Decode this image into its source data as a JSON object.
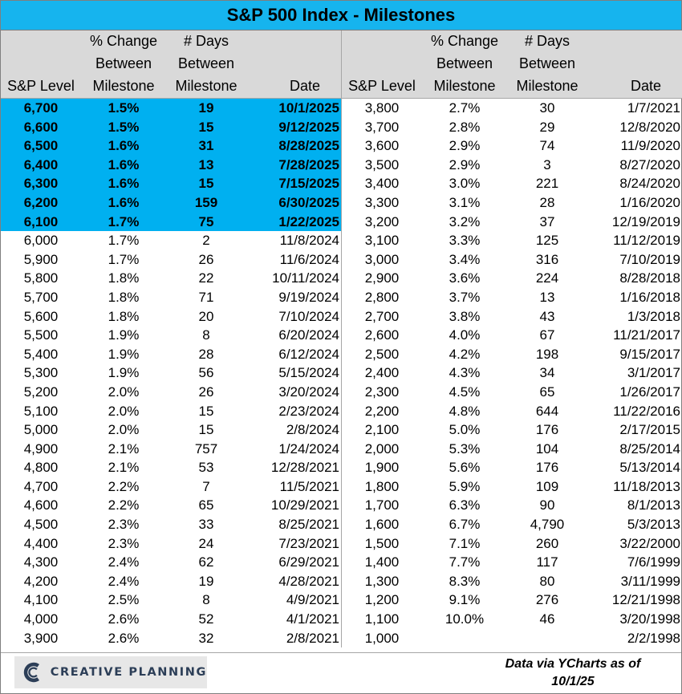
{
  "title": "S&P 500 Index  - Milestones",
  "headers": {
    "level": [
      "",
      "",
      "S&P Level"
    ],
    "pct": [
      "% Change",
      "Between",
      "Milestone"
    ],
    "days": [
      "# Days",
      "Between",
      "Milestone"
    ],
    "date": [
      "",
      "",
      "Date"
    ]
  },
  "left_rows": [
    {
      "level": "6,700",
      "pct": "1.5%",
      "days": "19",
      "date": "10/1/2025",
      "highlight": true
    },
    {
      "level": "6,600",
      "pct": "1.5%",
      "days": "15",
      "date": "9/12/2025",
      "highlight": true
    },
    {
      "level": "6,500",
      "pct": "1.6%",
      "days": "31",
      "date": "8/28/2025",
      "highlight": true
    },
    {
      "level": "6,400",
      "pct": "1.6%",
      "days": "13",
      "date": "7/28/2025",
      "highlight": true
    },
    {
      "level": "6,300",
      "pct": "1.6%",
      "days": "15",
      "date": "7/15/2025",
      "highlight": true
    },
    {
      "level": "6,200",
      "pct": "1.6%",
      "days": "159",
      "date": "6/30/2025",
      "highlight": true
    },
    {
      "level": "6,100",
      "pct": "1.7%",
      "days": "75",
      "date": "1/22/2025",
      "highlight": true
    },
    {
      "level": "6,000",
      "pct": "1.7%",
      "days": "2",
      "date": "11/8/2024",
      "highlight": false
    },
    {
      "level": "5,900",
      "pct": "1.7%",
      "days": "26",
      "date": "11/6/2024",
      "highlight": false
    },
    {
      "level": "5,800",
      "pct": "1.8%",
      "days": "22",
      "date": "10/11/2024",
      "highlight": false
    },
    {
      "level": "5,700",
      "pct": "1.8%",
      "days": "71",
      "date": "9/19/2024",
      "highlight": false
    },
    {
      "level": "5,600",
      "pct": "1.8%",
      "days": "20",
      "date": "7/10/2024",
      "highlight": false
    },
    {
      "level": "5,500",
      "pct": "1.9%",
      "days": "8",
      "date": "6/20/2024",
      "highlight": false
    },
    {
      "level": "5,400",
      "pct": "1.9%",
      "days": "28",
      "date": "6/12/2024",
      "highlight": false
    },
    {
      "level": "5,300",
      "pct": "1.9%",
      "days": "56",
      "date": "5/15/2024",
      "highlight": false
    },
    {
      "level": "5,200",
      "pct": "2.0%",
      "days": "26",
      "date": "3/20/2024",
      "highlight": false
    },
    {
      "level": "5,100",
      "pct": "2.0%",
      "days": "15",
      "date": "2/23/2024",
      "highlight": false
    },
    {
      "level": "5,000",
      "pct": "2.0%",
      "days": "15",
      "date": "2/8/2024",
      "highlight": false
    },
    {
      "level": "4,900",
      "pct": "2.1%",
      "days": "757",
      "date": "1/24/2024",
      "highlight": false
    },
    {
      "level": "4,800",
      "pct": "2.1%",
      "days": "53",
      "date": "12/28/2021",
      "highlight": false
    },
    {
      "level": "4,700",
      "pct": "2.2%",
      "days": "7",
      "date": "11/5/2021",
      "highlight": false
    },
    {
      "level": "4,600",
      "pct": "2.2%",
      "days": "65",
      "date": "10/29/2021",
      "highlight": false
    },
    {
      "level": "4,500",
      "pct": "2.3%",
      "days": "33",
      "date": "8/25/2021",
      "highlight": false
    },
    {
      "level": "4,400",
      "pct": "2.3%",
      "days": "24",
      "date": "7/23/2021",
      "highlight": false
    },
    {
      "level": "4,300",
      "pct": "2.4%",
      "days": "62",
      "date": "6/29/2021",
      "highlight": false
    },
    {
      "level": "4,200",
      "pct": "2.4%",
      "days": "19",
      "date": "4/28/2021",
      "highlight": false
    },
    {
      "level": "4,100",
      "pct": "2.5%",
      "days": "8",
      "date": "4/9/2021",
      "highlight": false
    },
    {
      "level": "4,000",
      "pct": "2.6%",
      "days": "52",
      "date": "4/1/2021",
      "highlight": false
    },
    {
      "level": "3,900",
      "pct": "2.6%",
      "days": "32",
      "date": "2/8/2021",
      "highlight": false
    }
  ],
  "right_rows": [
    {
      "level": "3,800",
      "pct": "2.7%",
      "days": "30",
      "date": "1/7/2021",
      "highlight": false
    },
    {
      "level": "3,700",
      "pct": "2.8%",
      "days": "29",
      "date": "12/8/2020",
      "highlight": false
    },
    {
      "level": "3,600",
      "pct": "2.9%",
      "days": "74",
      "date": "11/9/2020",
      "highlight": false
    },
    {
      "level": "3,500",
      "pct": "2.9%",
      "days": "3",
      "date": "8/27/2020",
      "highlight": false
    },
    {
      "level": "3,400",
      "pct": "3.0%",
      "days": "221",
      "date": "8/24/2020",
      "highlight": false
    },
    {
      "level": "3,300",
      "pct": "3.1%",
      "days": "28",
      "date": "1/16/2020",
      "highlight": false
    },
    {
      "level": "3,200",
      "pct": "3.2%",
      "days": "37",
      "date": "12/19/2019",
      "highlight": false
    },
    {
      "level": "3,100",
      "pct": "3.3%",
      "days": "125",
      "date": "11/12/2019",
      "highlight": false
    },
    {
      "level": "3,000",
      "pct": "3.4%",
      "days": "316",
      "date": "7/10/2019",
      "highlight": false
    },
    {
      "level": "2,900",
      "pct": "3.6%",
      "days": "224",
      "date": "8/28/2018",
      "highlight": false
    },
    {
      "level": "2,800",
      "pct": "3.7%",
      "days": "13",
      "date": "1/16/2018",
      "highlight": false
    },
    {
      "level": "2,700",
      "pct": "3.8%",
      "days": "43",
      "date": "1/3/2018",
      "highlight": false
    },
    {
      "level": "2,600",
      "pct": "4.0%",
      "days": "67",
      "date": "11/21/2017",
      "highlight": false
    },
    {
      "level": "2,500",
      "pct": "4.2%",
      "days": "198",
      "date": "9/15/2017",
      "highlight": false
    },
    {
      "level": "2,400",
      "pct": "4.3%",
      "days": "34",
      "date": "3/1/2017",
      "highlight": false
    },
    {
      "level": "2,300",
      "pct": "4.5%",
      "days": "65",
      "date": "1/26/2017",
      "highlight": false
    },
    {
      "level": "2,200",
      "pct": "4.8%",
      "days": "644",
      "date": "11/22/2016",
      "highlight": false
    },
    {
      "level": "2,100",
      "pct": "5.0%",
      "days": "176",
      "date": "2/17/2015",
      "highlight": false
    },
    {
      "level": "2,000",
      "pct": "5.3%",
      "days": "104",
      "date": "8/25/2014",
      "highlight": false
    },
    {
      "level": "1,900",
      "pct": "5.6%",
      "days": "176",
      "date": "5/13/2014",
      "highlight": false
    },
    {
      "level": "1,800",
      "pct": "5.9%",
      "days": "109",
      "date": "11/18/2013",
      "highlight": false
    },
    {
      "level": "1,700",
      "pct": "6.3%",
      "days": "90",
      "date": "8/1/2013",
      "highlight": false
    },
    {
      "level": "1,600",
      "pct": "6.7%",
      "days": "4,790",
      "date": "5/3/2013",
      "highlight": false
    },
    {
      "level": "1,500",
      "pct": "7.1%",
      "days": "260",
      "date": "3/22/2000",
      "highlight": false
    },
    {
      "level": "1,400",
      "pct": "7.7%",
      "days": "117",
      "date": "7/6/1999",
      "highlight": false
    },
    {
      "level": "1,300",
      "pct": "8.3%",
      "days": "80",
      "date": "3/11/1999",
      "highlight": false
    },
    {
      "level": "1,200",
      "pct": "9.1%",
      "days": "276",
      "date": "12/21/1998",
      "highlight": false
    },
    {
      "level": "1,100",
      "pct": "10.0%",
      "days": "46",
      "date": "3/20/1998",
      "highlight": false
    },
    {
      "level": "1,000",
      "pct": "",
      "days": "",
      "date": "2/2/1998",
      "highlight": false
    }
  ],
  "footer": {
    "logo_text": "CREATIVE PLANNING",
    "logo_icon": "creative-planning-c-mark",
    "source_line1": "Data via YCharts as of",
    "source_line2": "10/1/25"
  },
  "colors": {
    "title_bg": "#16b4ee",
    "highlight_bg": "#00b0f0",
    "header_bg": "#d9d9d9",
    "logo_text": "#2c3e57"
  }
}
